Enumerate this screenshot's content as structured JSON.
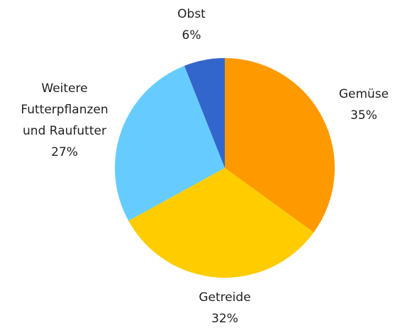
{
  "chart_data": {
    "type": "pie",
    "categories": [
      "Gemüse",
      "Getreide",
      "Weitere Futterpflanzen und Raufutter",
      "Obst"
    ],
    "values": [
      35,
      32,
      27,
      6
    ],
    "value_labels": [
      "35%",
      "32%",
      "27%",
      "6%"
    ],
    "colors": [
      "#ff9900",
      "#ffcc00",
      "#66ccff",
      "#3366cc"
    ]
  }
}
